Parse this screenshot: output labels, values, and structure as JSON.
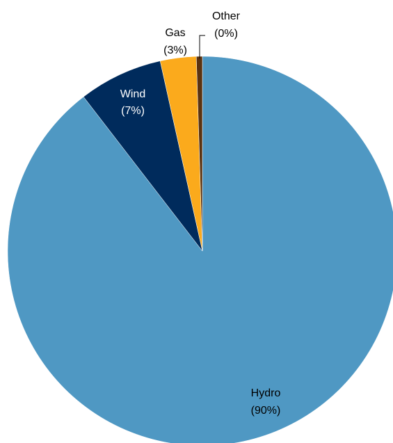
{
  "chart_data": {
    "type": "pie",
    "slices": [
      {
        "label": "Hydro",
        "value": 90,
        "value_label": "(90%)",
        "color": "#4F98C3"
      },
      {
        "label": "Other",
        "value": 0.5,
        "value_label": "(0%)",
        "color": "#5A3210"
      },
      {
        "label": "Gas",
        "value": 3,
        "value_label": "(3%)",
        "color": "#FBAA1C"
      },
      {
        "label": "Wind",
        "value": 7,
        "value_label": "(7%)",
        "color": "#002B5C"
      }
    ],
    "start": "12 o'clock",
    "direction": "counterclockwise from Hydro"
  }
}
